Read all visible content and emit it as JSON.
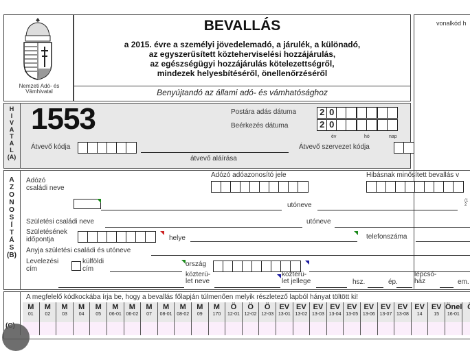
{
  "header": {
    "agency": "Nemzeti Adó- és Vámhivatal",
    "title": "BEVALLÁS",
    "subtitle": [
      "a 2015. évre a személyi jövedelemadó, a járulék, a különadó,",
      "az egyszerűsített közteherviselési hozzájárulás,",
      "az egészségügyi hozzájárulás kötelezettségről,",
      "mindezek helyesbítéséről, önellenőrzéséről"
    ],
    "submit_to": "Benyújtandó az állami adó- és vámhatósághoz",
    "barcode_label": "vonalkód h"
  },
  "section_a": {
    "side_letters": [
      "H",
      "I",
      "V",
      "A",
      "T",
      "A",
      "L",
      "(A)"
    ],
    "form_number": "1553",
    "postal_date_label": "Postára adás dátuma",
    "arrival_date_label": "Beérkezés dátuma",
    "date_prefix": [
      "2",
      "0"
    ],
    "year_label": "év",
    "month_label": "hó",
    "day_label": "nap",
    "receiver_code_label": "Átvevő kódja",
    "receiver_signature_label": "átvevő aláírása",
    "receiver_org_label": "Átvevő szervezet kódja"
  },
  "section_b": {
    "side_letters": [
      "A",
      "Z",
      "O",
      "N",
      "O",
      "S",
      "Í",
      "T",
      "Á",
      "S",
      "(B)"
    ],
    "tax_id_label": "Adózó adóazonosító jele",
    "faulty_label": "Hibásnak minősített bevallás v",
    "faulty_note": [
      "(1",
      "2"
    ],
    "family_name_label": [
      "Adózó",
      "családi neve"
    ],
    "first_name_label": "utóneve",
    "birth_family_name_label": "Születési családi neve",
    "birth_first_name_label": "utóneve",
    "birth_date_label": [
      "Születésének",
      "időpontja"
    ],
    "birth_place_label": "helye",
    "phone_label": "telefonszáma",
    "mother_name_label": "Anyja születési családi és utóneve",
    "mail_address_label": [
      "Levelezési",
      "cím"
    ],
    "foreign_label": [
      "külföldi",
      "cím"
    ],
    "country_label": "ország",
    "street_name_label": [
      "közterü-",
      "let neve"
    ],
    "street_type_label": [
      "közterü-",
      "let jellege"
    ],
    "house_no_label": "hsz.",
    "building_label": "ép.",
    "staircase_label": [
      "lépcső-",
      "ház"
    ],
    "floor_label": "em."
  },
  "section_c": {
    "side_label": "(C)",
    "instruction": "A megfelelő kódkockába írja be, hogy a bevallás főlapján túlmenően melyik részletező lapból hányat töltött ki!",
    "columns": [
      {
        "p": "M",
        "c": "01"
      },
      {
        "p": "M",
        "c": "02"
      },
      {
        "p": "M",
        "c": "03"
      },
      {
        "p": "M",
        "c": "04"
      },
      {
        "p": "M",
        "c": "05"
      },
      {
        "p": "M",
        "c": "06-01"
      },
      {
        "p": "M",
        "c": "06-02"
      },
      {
        "p": "M",
        "c": "07"
      },
      {
        "p": "M",
        "c": "08-01"
      },
      {
        "p": "M",
        "c": "08-02"
      },
      {
        "p": "M",
        "c": "09"
      },
      {
        "p": "M",
        "c": "170"
      },
      {
        "p": "Ö",
        "c": "12-01"
      },
      {
        "p": "Ö",
        "c": "12-02"
      },
      {
        "p": "Ö",
        "c": "12-03"
      },
      {
        "p": "EV",
        "c": "13-01"
      },
      {
        "p": "EV",
        "c": "13-02"
      },
      {
        "p": "EV",
        "c": "13-03"
      },
      {
        "p": "EV",
        "c": "13-04"
      },
      {
        "p": "EV",
        "c": "13-05"
      },
      {
        "p": "EV",
        "c": "13-06"
      },
      {
        "p": "EV",
        "c": "13-07"
      },
      {
        "p": "EV",
        "c": "13-08"
      },
      {
        "p": "EV",
        "c": "14"
      },
      {
        "p": "EV",
        "c": "15"
      },
      {
        "p": "Önell",
        "c": "16-01"
      },
      {
        "p": "Ö",
        "c": ""
      }
    ]
  },
  "colors": {
    "gray_panel": "#e8e8e8",
    "pink_cells": "#fbeefb",
    "tick_green": "#1a8a1a",
    "tick_red": "#c22222",
    "tick_blue": "#1a1aa0"
  }
}
